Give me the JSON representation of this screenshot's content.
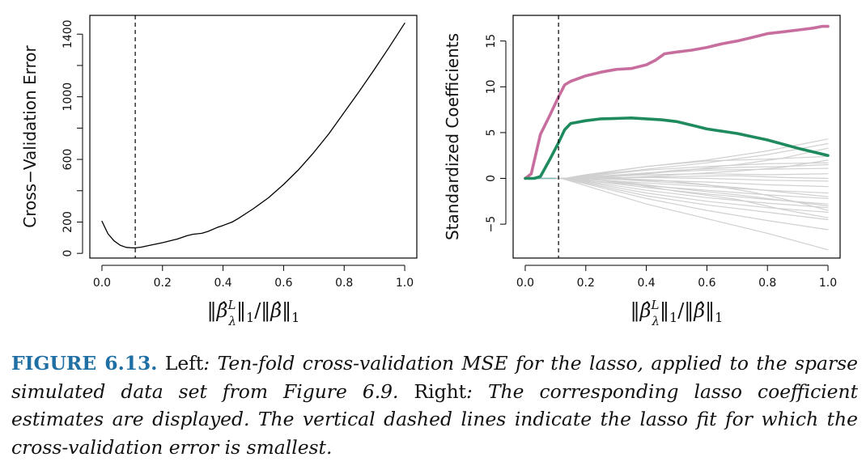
{
  "chart_data": [
    {
      "type": "line",
      "panel": "left",
      "ylabel": "Cross−Validation Error",
      "xlabel": "‖β̂ᴸλ‖1/‖β̂‖1",
      "xlim": [
        -0.04,
        1.04
      ],
      "ylim": [
        -30,
        1520
      ],
      "x_ticks": [
        "0.0",
        "0.2",
        "0.4",
        "0.6",
        "0.8",
        "1.0"
      ],
      "x_tick_values": [
        0,
        0.2,
        0.4,
        0.6,
        0.8,
        1.0
      ],
      "y_ticks": [
        "0",
        "200",
        "600",
        "1000",
        "1400"
      ],
      "y_tick_values": [
        0,
        200,
        600,
        1000,
        1400
      ],
      "y_minor_ticks": [
        400,
        800,
        1200
      ],
      "grid": false,
      "vline": {
        "x": 0.11,
        "style": "dashed"
      },
      "series": [
        {
          "color": "#000000",
          "x": [
            0.0,
            0.02,
            0.04,
            0.06,
            0.08,
            0.1,
            0.11,
            0.13,
            0.15,
            0.2,
            0.25,
            0.28,
            0.3,
            0.33,
            0.35,
            0.38,
            0.4,
            0.43,
            0.45,
            0.5,
            0.55,
            0.6,
            0.65,
            0.7,
            0.75,
            0.8,
            0.85,
            0.9,
            0.95,
            1.0
          ],
          "y": [
            205,
            125,
            80,
            52,
            38,
            35,
            35,
            40,
            48,
            68,
            92,
            112,
            122,
            128,
            140,
            165,
            178,
            200,
            222,
            285,
            355,
            440,
            535,
            645,
            765,
            900,
            1035,
            1175,
            1320,
            1470
          ]
        }
      ]
    },
    {
      "type": "line",
      "panel": "right",
      "ylabel": "Standardized Coefficients",
      "xlabel": "‖β̂ᴸλ‖1/‖β̂‖1",
      "xlim": [
        -0.04,
        1.04
      ],
      "ylim": [
        -8.7,
        17.8
      ],
      "x_ticks": [
        "0.0",
        "0.2",
        "0.4",
        "0.6",
        "0.8",
        "1.0"
      ],
      "x_tick_values": [
        0,
        0.2,
        0.4,
        0.6,
        0.8,
        1.0
      ],
      "y_ticks": [
        "−5",
        "0",
        "5",
        "10",
        "15"
      ],
      "y_tick_values": [
        -5,
        0,
        5,
        10,
        15
      ],
      "grid": false,
      "vline": {
        "x": 0.11,
        "style": "dashed"
      },
      "series": [
        {
          "color": "#c86e9e",
          "emphasis": true,
          "x": [
            0,
            0.02,
            0.05,
            0.08,
            0.11,
            0.13,
            0.15,
            0.2,
            0.25,
            0.3,
            0.35,
            0.4,
            0.43,
            0.46,
            0.5,
            0.55,
            0.6,
            0.65,
            0.7,
            0.75,
            0.8,
            0.85,
            0.9,
            0.95,
            0.98,
            1.0
          ],
          "y": [
            0,
            0.5,
            4.8,
            6.8,
            8.9,
            10.2,
            10.6,
            11.2,
            11.6,
            11.9,
            12.0,
            12.4,
            12.9,
            13.6,
            13.8,
            14.0,
            14.3,
            14.7,
            15.0,
            15.4,
            15.8,
            16.0,
            16.2,
            16.4,
            16.6,
            16.6
          ]
        },
        {
          "color": "#1e8a5e",
          "emphasis": true,
          "x": [
            0,
            0.03,
            0.05,
            0.08,
            0.11,
            0.13,
            0.15,
            0.2,
            0.25,
            0.3,
            0.35,
            0.4,
            0.45,
            0.5,
            0.55,
            0.6,
            0.7,
            0.8,
            0.9,
            1.0
          ],
          "y": [
            0,
            0,
            0.2,
            2.0,
            3.9,
            5.3,
            6.0,
            6.3,
            6.5,
            6.55,
            6.6,
            6.5,
            6.4,
            6.2,
            5.8,
            5.4,
            4.9,
            4.2,
            3.3,
            2.5
          ]
        },
        {
          "color": "#d0d0d0",
          "x": [
            0,
            0.13,
            0.2,
            0.4,
            0.6,
            0.8,
            1.0
          ],
          "y": [
            0,
            0,
            0.4,
            1.3,
            2.0,
            3.0,
            4.3
          ]
        },
        {
          "color": "#d0d0d0",
          "x": [
            0,
            0.13,
            0.2,
            0.4,
            0.6,
            0.8,
            1.0
          ],
          "y": [
            0,
            0,
            0.3,
            1.0,
            1.7,
            2.6,
            3.8
          ]
        },
        {
          "color": "#d0d0d0",
          "x": [
            0,
            0.14,
            0.2,
            0.4,
            0.6,
            0.8,
            1.0
          ],
          "y": [
            0,
            0,
            0.3,
            1.3,
            1.9,
            2.1,
            2.4
          ]
        },
        {
          "color": "#d0d0d0",
          "x": [
            0,
            0.14,
            0.2,
            0.4,
            0.6,
            0.8,
            1.0
          ],
          "y": [
            0,
            0,
            0.2,
            0.9,
            1.3,
            1.6,
            1.7
          ]
        },
        {
          "color": "#d0d0d0",
          "x": [
            0,
            0.15,
            0.2,
            0.4,
            0.6,
            0.8,
            1.0
          ],
          "y": [
            0,
            0,
            0.15,
            0.6,
            0.9,
            1.0,
            1.1
          ]
        },
        {
          "color": "#d0d0d0",
          "x": [
            0,
            0.15,
            0.2,
            0.4,
            0.6,
            0.8,
            1.0
          ],
          "y": [
            0,
            0,
            0.1,
            0.4,
            0.5,
            0.4,
            0.5
          ]
        },
        {
          "color": "#d0d0d0",
          "x": [
            0,
            0.16,
            0.2,
            0.4,
            0.6,
            0.8,
            1.0
          ],
          "y": [
            0,
            0,
            0.05,
            0.1,
            0.0,
            -0.2,
            -0.3
          ]
        },
        {
          "color": "#d0d0d0",
          "x": [
            0,
            0.16,
            0.2,
            0.4,
            0.6,
            0.8,
            1.0
          ],
          "y": [
            0,
            0,
            0.0,
            -0.2,
            -0.4,
            -0.7,
            -0.9
          ]
        },
        {
          "color": "#d0d0d0",
          "x": [
            0,
            0.15,
            0.2,
            0.4,
            0.6,
            0.8,
            1.0
          ],
          "y": [
            0,
            0,
            -0.1,
            -0.5,
            -0.9,
            -1.3,
            -1.6
          ]
        },
        {
          "color": "#d0d0d0",
          "x": [
            0,
            0.15,
            0.2,
            0.4,
            0.6,
            0.8,
            1.0
          ],
          "y": [
            0,
            0,
            -0.2,
            -0.8,
            -1.3,
            -1.8,
            -2.2
          ]
        },
        {
          "color": "#d0d0d0",
          "x": [
            0,
            0.14,
            0.2,
            0.4,
            0.6,
            0.8,
            1.0
          ],
          "y": [
            0,
            0,
            -0.2,
            -1.0,
            -1.7,
            -2.3,
            -2.8
          ]
        },
        {
          "color": "#d0d0d0",
          "x": [
            0,
            0.14,
            0.2,
            0.4,
            0.6,
            0.8,
            1.0
          ],
          "y": [
            0,
            0,
            -0.3,
            -1.3,
            -2.1,
            -2.7,
            -3.2
          ]
        },
        {
          "color": "#d0d0d0",
          "x": [
            0,
            0.13,
            0.2,
            0.4,
            0.6,
            0.8,
            1.0
          ],
          "y": [
            0,
            0,
            -0.4,
            -1.6,
            -2.5,
            -3.2,
            -3.7
          ]
        },
        {
          "color": "#d0d0d0",
          "x": [
            0,
            0.13,
            0.2,
            0.4,
            0.6,
            0.8,
            1.0
          ],
          "y": [
            0,
            0,
            -0.5,
            -1.9,
            -2.9,
            -3.7,
            -4.5
          ]
        },
        {
          "color": "#d0d0d0",
          "x": [
            0,
            0.12,
            0.2,
            0.4,
            0.6,
            0.8,
            1.0
          ],
          "y": [
            0,
            0,
            -0.6,
            -2.2,
            -3.5,
            -4.6,
            -5.6
          ]
        },
        {
          "color": "#d0d0d0",
          "x": [
            0,
            0.12,
            0.2,
            0.4,
            0.6,
            0.8,
            1.0
          ],
          "y": [
            0,
            0,
            -0.8,
            -2.8,
            -4.4,
            -6.0,
            -7.8
          ]
        },
        {
          "color": "#d0d0d0",
          "x": [
            0,
            0.17,
            0.3,
            0.5,
            0.7,
            0.85,
            1.0
          ],
          "y": [
            0,
            0,
            0.2,
            0.8,
            1.5,
            2.2,
            3.3
          ]
        },
        {
          "color": "#d0d0d0",
          "x": [
            0,
            0.18,
            0.3,
            0.5,
            0.7,
            0.85,
            1.0
          ],
          "y": [
            0,
            0,
            -0.3,
            -1.1,
            -1.8,
            -2.4,
            -3.0
          ]
        },
        {
          "color": "#d0d0d0",
          "x": [
            0,
            0.2,
            0.35,
            0.5,
            0.7,
            0.85,
            1.0
          ],
          "y": [
            0,
            0,
            0.4,
            0.9,
            1.2,
            1.3,
            1.5
          ]
        },
        {
          "color": "#d0d0d0",
          "x": [
            0,
            0.2,
            0.35,
            0.5,
            0.7,
            0.85,
            1.0
          ],
          "y": [
            0,
            0,
            -0.6,
            -1.4,
            -2.3,
            -3.4,
            -4.3
          ]
        },
        {
          "color": "#d0d0d0",
          "x": [
            0,
            0.22,
            0.35,
            0.5,
            0.7,
            0.85,
            1.0
          ],
          "y": [
            0,
            0,
            0.1,
            0.2,
            0.3,
            0.1,
            0.0
          ]
        },
        {
          "color": "#d0d0d0",
          "x": [
            0,
            0.25,
            0.4,
            0.55,
            0.7,
            0.85,
            1.0
          ],
          "y": [
            0,
            0,
            -0.3,
            -0.6,
            -1.0,
            -1.5,
            -2.0
          ]
        },
        {
          "color": "#d0d0d0",
          "x": [
            0,
            0.28,
            0.4,
            0.55,
            0.7,
            0.85,
            1.0
          ],
          "y": [
            0,
            0,
            0.2,
            0.5,
            0.8,
            1.2,
            2.0
          ]
        },
        {
          "color": "#d0d0d0",
          "x": [
            0,
            0.3,
            0.45,
            0.6,
            0.75,
            0.9,
            1.0
          ],
          "y": [
            0,
            0,
            -0.2,
            -0.7,
            -1.5,
            -2.6,
            -3.5
          ]
        },
        {
          "color": "#7ab8b4",
          "x": [
            0,
            0.03,
            0.06,
            0.1
          ],
          "y": [
            0,
            -0.05,
            0,
            0
          ]
        }
      ]
    }
  ],
  "caption": {
    "label": "FIGURE 6.13.",
    "part1_roman": "Left",
    "part1_italic": ": Ten-fold cross-validation MSE for the lasso, applied to the sparse simulated data set from Figure 6.9.",
    "part2_roman": "Right",
    "part2_italic": ": The corresponding lasso coefficient estimates are displayed. The vertical dashed lines indicate the lasso fit for which the cross-validation error is smallest."
  }
}
